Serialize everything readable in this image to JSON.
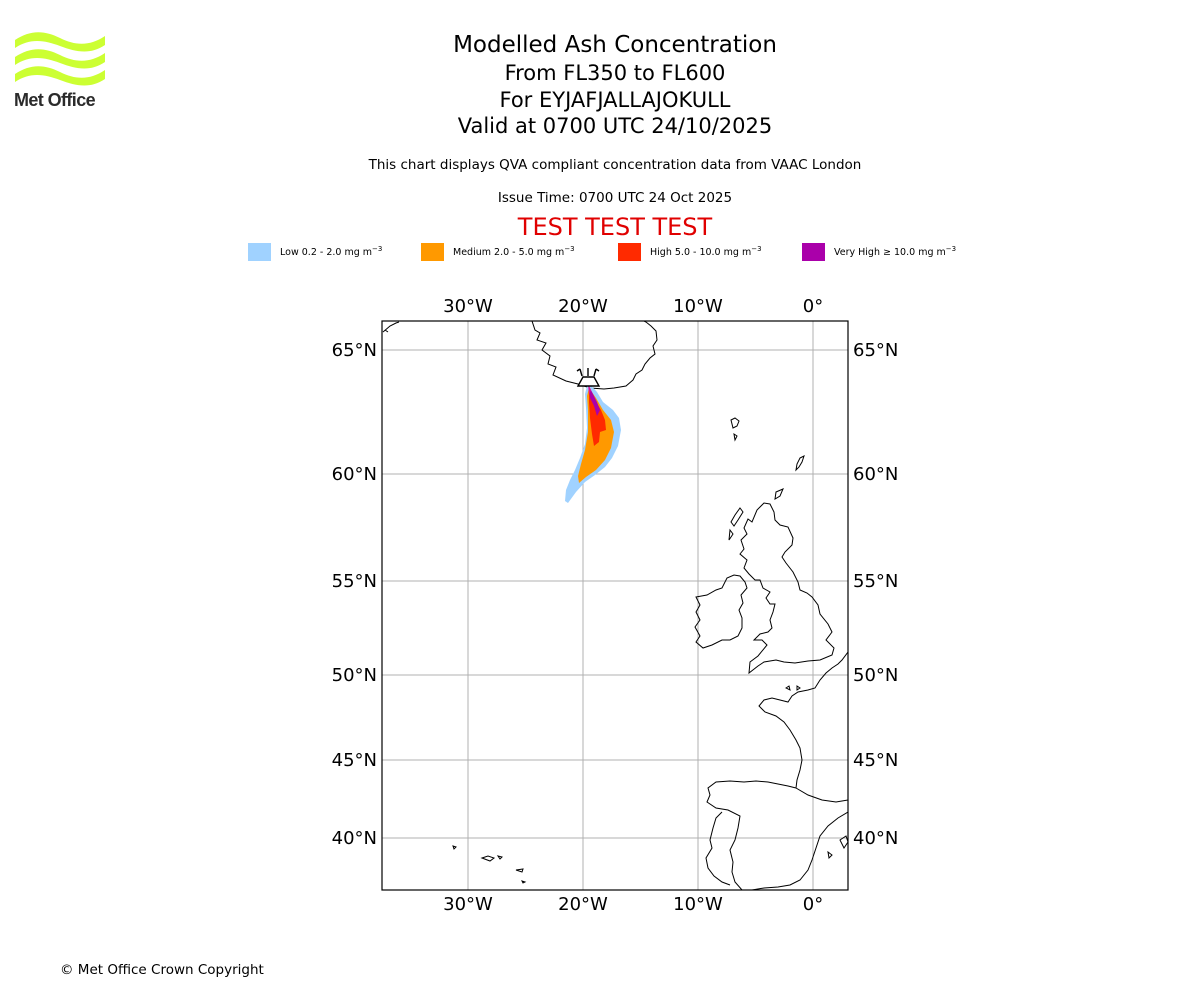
{
  "logo": {
    "text": "Met Office",
    "color": "#ccff33"
  },
  "title": {
    "main": "Modelled Ash Concentration",
    "levels": "From FL350 to FL600",
    "volcano": "For EYJAFJALLAJOKULL",
    "valid": "Valid at 0700 UTC 24/10/2025"
  },
  "description": "This chart displays QVA compliant concentration data from VAAC London",
  "issue_time": "Issue Time: 0700 UTC 24 Oct 2025",
  "test_banner": "TEST TEST TEST",
  "legend": [
    {
      "level": "Low",
      "range": "0.2 - 2.0",
      "unit": "mg m",
      "exponent": "−3",
      "color": "#a0d2ff"
    },
    {
      "level": "Medium",
      "range": "2.0 - 5.0",
      "unit": "mg m",
      "exponent": "−3",
      "color": "#ff9900"
    },
    {
      "level": "High",
      "range": "5.0 - 10.0",
      "unit": "mg m",
      "exponent": "−3",
      "color": "#ff2a00"
    },
    {
      "level": "Very High",
      "range": "≥  10.0",
      "unit": "mg m",
      "exponent": "−3",
      "color": "#aa00aa"
    }
  ],
  "map": {
    "projection": "Mercator",
    "lon_ticks": [
      "30°W",
      "20°W",
      "10°W",
      "0°"
    ],
    "lat_ticks": [
      "65°N",
      "60°N",
      "55°N",
      "50°N",
      "45°N",
      "40°N"
    ],
    "gridlines": true,
    "volcano_marker": "volcano-icon"
  },
  "copyright": "© Met Office Crown Copyright"
}
